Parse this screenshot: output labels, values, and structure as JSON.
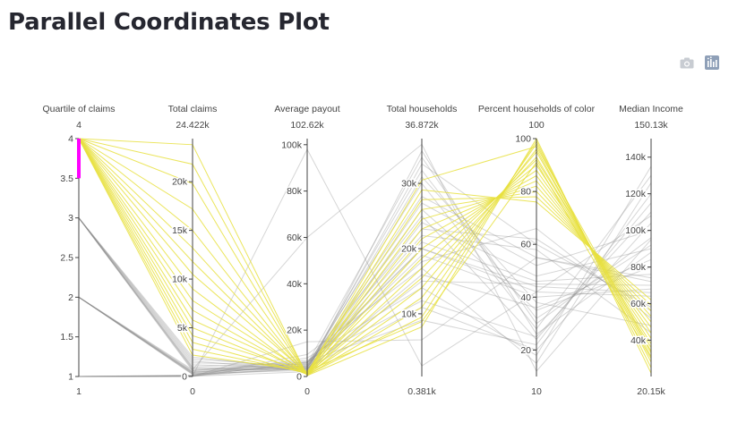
{
  "page": {
    "title": "Parallel Coordinates Plot"
  },
  "modebar": {
    "camera_icon": "camera-icon",
    "plotly_logo_icon": "plotly-logo-icon"
  },
  "colors": {
    "highlight": "#e8e040",
    "context": "#8a8a8a",
    "brush": "#ff00ff",
    "axis": "#444444"
  },
  "chart_data": {
    "type": "parallel-coordinates",
    "axes": [
      {
        "key": "q",
        "label": "Quartile of claims",
        "min": 1,
        "max": 4,
        "top_label": "4",
        "bottom_label": "1",
        "ticks": [
          {
            "v": 4,
            "t": "4"
          },
          {
            "v": 3.5,
            "t": "3.5"
          },
          {
            "v": 3,
            "t": "3"
          },
          {
            "v": 2.5,
            "t": "2.5"
          },
          {
            "v": 2,
            "t": "2"
          },
          {
            "v": 1.5,
            "t": "1.5"
          },
          {
            "v": 1,
            "t": "1"
          }
        ],
        "constraint": [
          3.5,
          4
        ]
      },
      {
        "key": "claims",
        "label": "Total claims",
        "min": 0,
        "max": 24422,
        "top_label": "24.422k",
        "bottom_label": "0",
        "ticks": [
          {
            "v": 20000,
            "t": "20k"
          },
          {
            "v": 15000,
            "t": "15k"
          },
          {
            "v": 10000,
            "t": "10k"
          },
          {
            "v": 5000,
            "t": "5k"
          },
          {
            "v": 0,
            "t": "0"
          }
        ]
      },
      {
        "key": "payout",
        "label": "Average payout",
        "min": 0,
        "max": 102620,
        "top_label": "102.62k",
        "bottom_label": "0",
        "ticks": [
          {
            "v": 100000,
            "t": "100k"
          },
          {
            "v": 80000,
            "t": "80k"
          },
          {
            "v": 60000,
            "t": "60k"
          },
          {
            "v": 40000,
            "t": "40k"
          },
          {
            "v": 20000,
            "t": "20k"
          },
          {
            "v": 0,
            "t": "0"
          }
        ]
      },
      {
        "key": "households",
        "label": "Total households",
        "min": 381,
        "max": 36872,
        "top_label": "36.872k",
        "bottom_label": "0.381k",
        "ticks": [
          {
            "v": 30000,
            "t": "30k"
          },
          {
            "v": 20000,
            "t": "20k"
          },
          {
            "v": 10000,
            "t": "10k"
          }
        ]
      },
      {
        "key": "pct_color",
        "label": "Percent households of color",
        "min": 10,
        "max": 100,
        "top_label": "100",
        "bottom_label": "10",
        "ticks": [
          {
            "v": 100,
            "t": "100"
          },
          {
            "v": 80,
            "t": "80"
          },
          {
            "v": 60,
            "t": "60"
          },
          {
            "v": 40,
            "t": "40"
          },
          {
            "v": 20,
            "t": "20"
          }
        ]
      },
      {
        "key": "income",
        "label": "Median Income",
        "min": 20150,
        "max": 150130,
        "top_label": "150.13k",
        "bottom_label": "20.15k",
        "ticks": [
          {
            "v": 140000,
            "t": "140k"
          },
          {
            "v": 120000,
            "t": "120k"
          },
          {
            "v": 100000,
            "t": "100k"
          },
          {
            "v": 80000,
            "t": "80k"
          },
          {
            "v": 60000,
            "t": "60k"
          },
          {
            "v": 40000,
            "t": "40k"
          }
        ]
      }
    ],
    "rows": [
      [
        4,
        23800,
        400,
        8000,
        100,
        22000
      ],
      [
        4,
        21800,
        700,
        9500,
        99,
        25000
      ],
      [
        4,
        19800,
        500,
        11000,
        98,
        28000
      ],
      [
        4,
        17200,
        900,
        12500,
        96,
        31000
      ],
      [
        4,
        15000,
        600,
        14000,
        95,
        33000
      ],
      [
        4,
        13200,
        1100,
        15500,
        93,
        36000
      ],
      [
        4,
        11800,
        800,
        17000,
        92,
        38000
      ],
      [
        4,
        10500,
        1300,
        18500,
        90,
        41000
      ],
      [
        4,
        9000,
        700,
        20000,
        88,
        44000
      ],
      [
        4,
        7800,
        1500,
        21500,
        86,
        47000
      ],
      [
        4,
        6800,
        1000,
        23000,
        84,
        50000
      ],
      [
        4,
        5800,
        1800,
        24500,
        82,
        53000
      ],
      [
        4,
        5000,
        900,
        26000,
        80,
        56000
      ],
      [
        4,
        4200,
        2000,
        27500,
        78,
        59000
      ],
      [
        4,
        3500,
        1200,
        29000,
        76,
        62000
      ],
      [
        4,
        2800,
        1600,
        30500,
        97,
        34000
      ],
      [
        4,
        2200,
        2300,
        8800,
        91,
        30000
      ],
      [
        3,
        2000,
        3000,
        33000,
        60,
        58000
      ],
      [
        3,
        1800,
        4000,
        28000,
        55,
        72000
      ],
      [
        3,
        1600,
        2500,
        24000,
        48,
        90000
      ],
      [
        3,
        1400,
        5000,
        20000,
        42,
        64000
      ],
      [
        3,
        1200,
        3500,
        31000,
        38,
        48000
      ],
      [
        3,
        1000,
        6000,
        18000,
        66,
        52000
      ],
      [
        3,
        900,
        2800,
        26000,
        35,
        80000
      ],
      [
        3,
        800,
        4500,
        22000,
        58,
        44000
      ],
      [
        3,
        700,
        3200,
        15000,
        45,
        70000
      ],
      [
        3,
        600,
        5500,
        34000,
        30,
        96000
      ],
      [
        2,
        600,
        7000,
        12000,
        25,
        110000
      ],
      [
        2,
        500,
        4200,
        19000,
        40,
        68000
      ],
      [
        2,
        450,
        3800,
        27000,
        52,
        100000
      ],
      [
        2,
        400,
        6500,
        9000,
        22,
        120000
      ],
      [
        2,
        350,
        5200,
        23000,
        62,
        56000
      ],
      [
        2,
        300,
        2600,
        16000,
        36,
        84000
      ],
      [
        2,
        250,
        4800,
        30000,
        28,
        130000
      ],
      [
        2,
        200,
        3300,
        21000,
        46,
        76000
      ],
      [
        1,
        150,
        8000,
        14000,
        18,
        135000
      ],
      [
        1,
        100,
        5800,
        25000,
        24,
        115000
      ],
      [
        1,
        80,
        4300,
        32000,
        32,
        92000
      ],
      [
        1,
        60,
        3600,
        11000,
        20,
        104000
      ],
      [
        1,
        40,
        6200,
        20000,
        44,
        66000
      ],
      [
        1,
        30,
        9500,
        17000,
        15,
        126000
      ],
      [
        1,
        20,
        2100,
        35000,
        26,
        88000
      ],
      [
        1,
        10,
        15000,
        6000,
        55,
        74000
      ],
      [
        2,
        700,
        60000,
        36000,
        12,
        95000
      ],
      [
        1,
        20,
        98000,
        2000,
        42,
        108000
      ]
    ]
  }
}
